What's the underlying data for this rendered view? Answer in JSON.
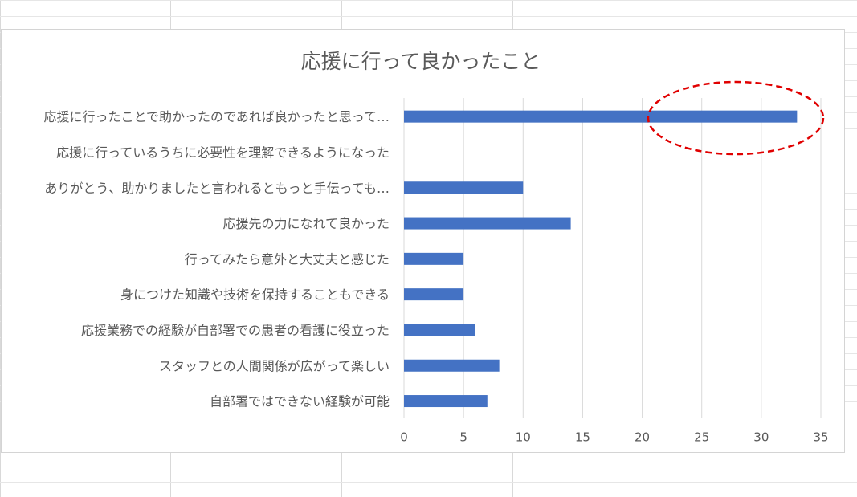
{
  "chart_data": {
    "type": "bar",
    "orientation": "horizontal",
    "title": "応援に行って良かったこと",
    "categories": [
      "応援に行ったことで助かったのであれば良かったと思って…",
      "応援に行っているうちに必要性を理解できるようになった",
      "ありがとう、助かりましたと言われるともっと手伝っても…",
      "応援先の力になれて良かった",
      "行ってみたら意外と大丈夫と感じた",
      "身につけた知識や技術を保持することもできる",
      "応援業務での経験が自部署での患者の看護に役立った",
      "スタッフとの人間関係が広がって楽しい",
      "自部署ではできない経験が可能"
    ],
    "values": [
      33,
      0,
      10,
      14,
      5,
      5,
      6,
      8,
      7
    ],
    "xlim": [
      0,
      35
    ],
    "xticks": [
      0,
      5,
      10,
      15,
      20,
      25,
      30,
      35
    ],
    "grid": "vertical",
    "bar_color": "#4472c4",
    "annotation": {
      "shape": "dashed-ellipse",
      "color": "#e00000",
      "highlights": "応援に行ったことで助かったのであれば良かったと思って…"
    }
  }
}
